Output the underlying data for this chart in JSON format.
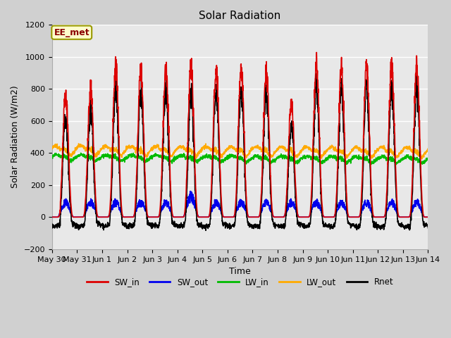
{
  "title": "Solar Radiation",
  "ylabel": "Solar Radiation (W/m2)",
  "xlabel": "Time",
  "annotation": "EE_met",
  "ylim": [
    -200,
    1200
  ],
  "yticks": [
    -200,
    0,
    200,
    400,
    600,
    800,
    1000,
    1200
  ],
  "fig_facecolor": "#d0d0d0",
  "axes_facecolor": "#e8e8e8",
  "grid_color": "#ffffff",
  "series": {
    "SW_in": {
      "color": "#dd0000",
      "lw": 1.2
    },
    "SW_out": {
      "color": "#0000ee",
      "lw": 1.2
    },
    "LW_in": {
      "color": "#00bb00",
      "lw": 1.2
    },
    "LW_out": {
      "color": "#ffaa00",
      "lw": 1.2
    },
    "Rnet": {
      "color": "#000000",
      "lw": 1.2
    }
  },
  "xtick_labels": [
    "May 30",
    "May 31",
    "Jun 1",
    "Jun 2",
    "Jun 3",
    "Jun 4",
    "Jun 5",
    "Jun 6",
    "Jun 7",
    "Jun 8",
    "Jun 9",
    "Jun 10",
    "Jun 11",
    "Jun 12",
    "Jun 13",
    "Jun 14"
  ],
  "n_days": 15,
  "ppd": 144,
  "seed": 7
}
